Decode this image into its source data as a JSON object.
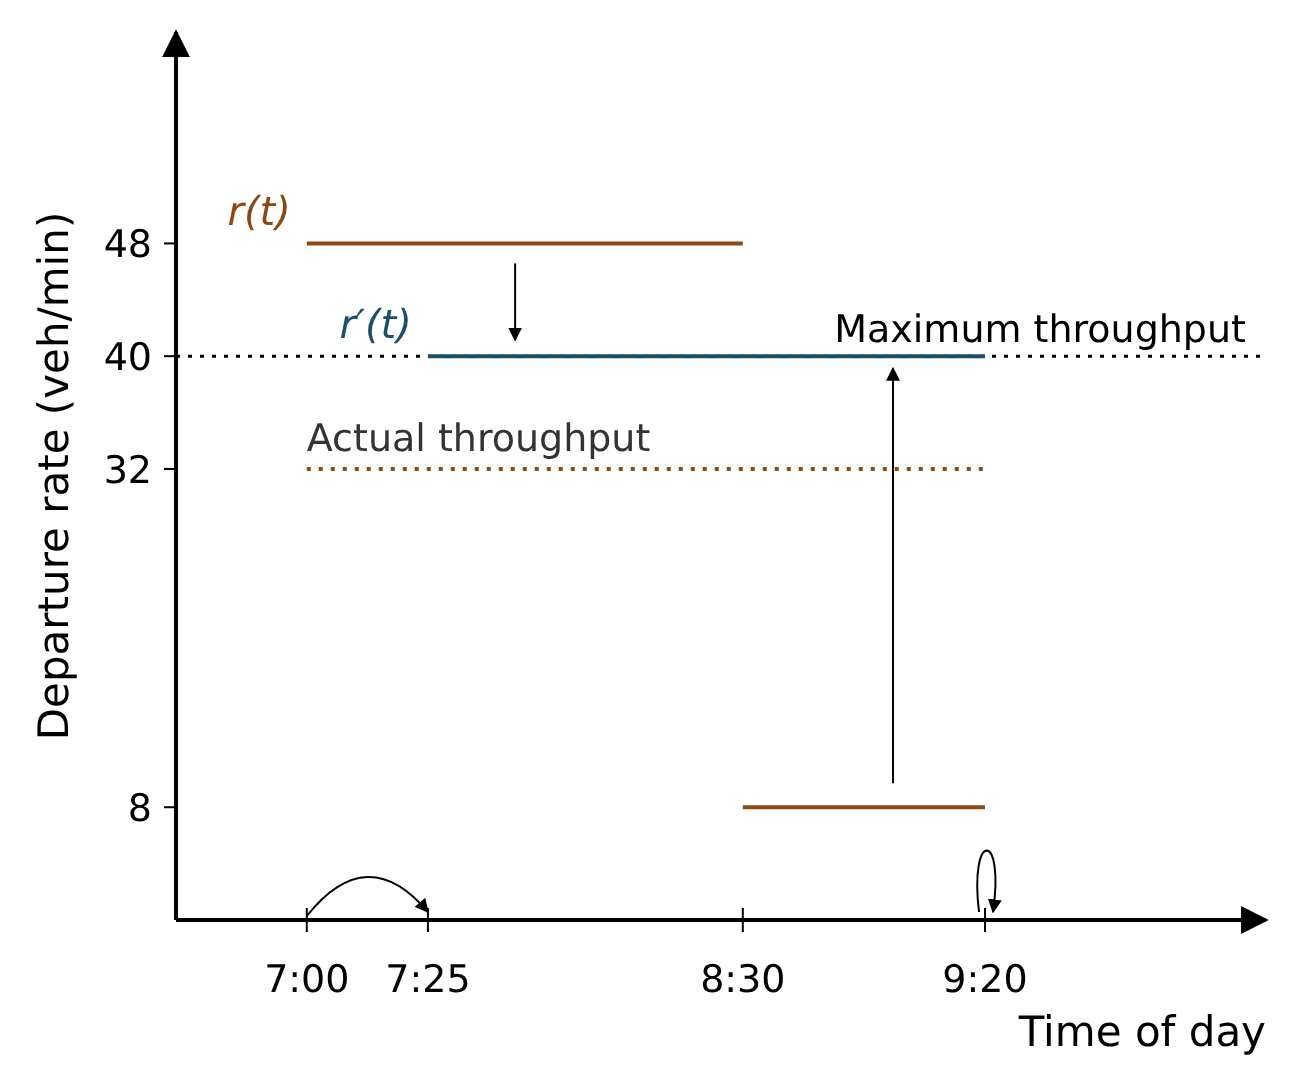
{
  "chart_data": {
    "type": "line",
    "xlabel": "Time of day",
    "ylabel": "Departure rate (veh/min)",
    "xlim": [
      6.55,
      10.3
    ],
    "ylim": [
      0,
      63
    ],
    "xticks": [
      {
        "value": 7,
        "label": "7:00"
      },
      {
        "value": 7.4167,
        "label": "7:25"
      },
      {
        "value": 8.5,
        "label": "8:30"
      },
      {
        "value": 9.3333,
        "label": "9:20"
      }
    ],
    "yticks": [
      8,
      32,
      40,
      48
    ],
    "series": [
      {
        "name": "r(t)",
        "color": "#8b4a14",
        "x": [
          7,
          8.5
        ],
        "values": [
          48,
          48
        ]
      },
      {
        "color": "#8b4a14",
        "x": [
          8.5,
          9.3333
        ],
        "values": [
          8,
          8
        ]
      },
      {
        "name": "r′(t)",
        "color": "#1d4e6b",
        "x": [
          7.4167,
          9.3333
        ],
        "values": [
          40,
          40
        ]
      },
      {
        "name": "Actual throughput",
        "color": "#8b4a14",
        "line_style": "dotted",
        "x": [
          7,
          9.3333
        ],
        "values": [
          32,
          32
        ]
      }
    ],
    "ref_lines": [
      {
        "axis": "y",
        "value": 40,
        "label": "Maximum throughput",
        "color": "#000000",
        "line_style": "dotted"
      }
    ],
    "grid": false
  }
}
